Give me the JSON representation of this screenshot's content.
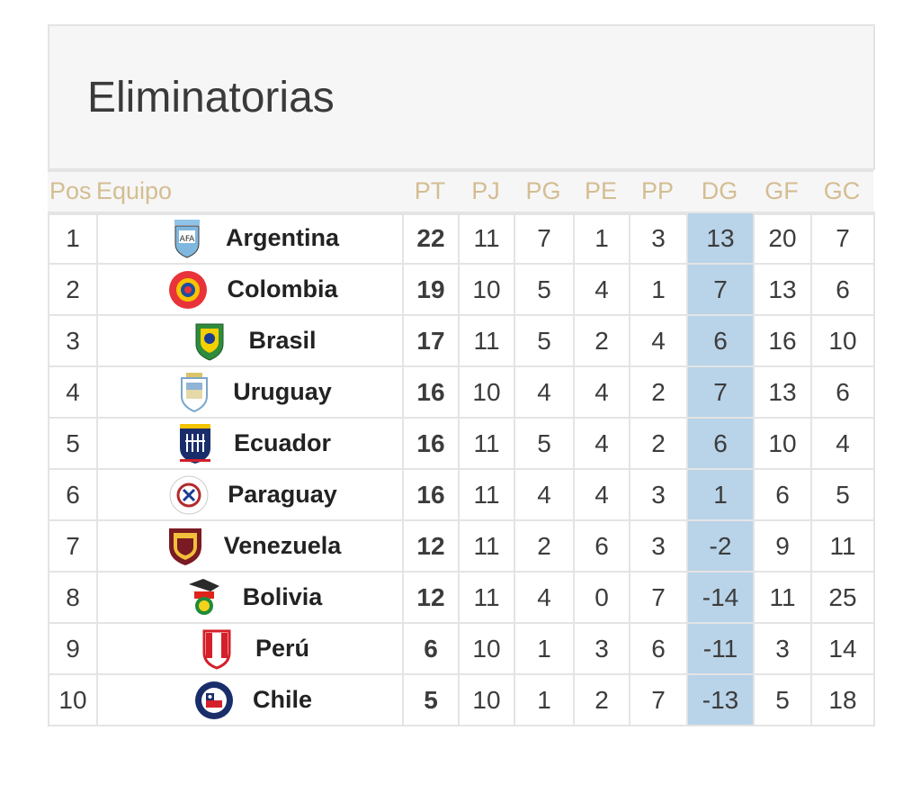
{
  "title": "Eliminatorias",
  "headers": {
    "pos": "Pos",
    "team": "Equipo",
    "pt": "PT",
    "pj": "PJ",
    "pg": "PG",
    "pe": "PE",
    "pp": "PP",
    "dg": "DG",
    "gf": "GF",
    "gc": "GC"
  },
  "colors": {
    "header_text": "#d4bd91",
    "dg_highlight": "#b9d3e8",
    "border": "#e4e4e4"
  },
  "rows": [
    {
      "pos": "1",
      "team": "Argentina",
      "crest": "argentina-crest-icon",
      "pt": "22",
      "pj": "11",
      "pg": "7",
      "pe": "1",
      "pp": "3",
      "dg": "13",
      "gf": "20",
      "gc": "7"
    },
    {
      "pos": "2",
      "team": "Colombia",
      "crest": "colombia-crest-icon",
      "pt": "19",
      "pj": "10",
      "pg": "5",
      "pe": "4",
      "pp": "1",
      "dg": "7",
      "gf": "13",
      "gc": "6"
    },
    {
      "pos": "3",
      "team": "Brasil",
      "crest": "brasil-crest-icon",
      "pt": "17",
      "pj": "11",
      "pg": "5",
      "pe": "2",
      "pp": "4",
      "dg": "6",
      "gf": "16",
      "gc": "10"
    },
    {
      "pos": "4",
      "team": "Uruguay",
      "crest": "uruguay-crest-icon",
      "pt": "16",
      "pj": "10",
      "pg": "4",
      "pe": "4",
      "pp": "2",
      "dg": "7",
      "gf": "13",
      "gc": "6"
    },
    {
      "pos": "5",
      "team": "Ecuador",
      "crest": "ecuador-crest-icon",
      "pt": "16",
      "pj": "11",
      "pg": "5",
      "pe": "4",
      "pp": "2",
      "dg": "6",
      "gf": "10",
      "gc": "4"
    },
    {
      "pos": "6",
      "team": "Paraguay",
      "crest": "paraguay-crest-icon",
      "pt": "16",
      "pj": "11",
      "pg": "4",
      "pe": "4",
      "pp": "3",
      "dg": "1",
      "gf": "6",
      "gc": "5"
    },
    {
      "pos": "7",
      "team": "Venezuela",
      "crest": "venezuela-crest-icon",
      "pt": "12",
      "pj": "11",
      "pg": "2",
      "pe": "6",
      "pp": "3",
      "dg": "-2",
      "gf": "9",
      "gc": "11"
    },
    {
      "pos": "8",
      "team": "Bolivia",
      "crest": "bolivia-crest-icon",
      "pt": "12",
      "pj": "11",
      "pg": "4",
      "pe": "0",
      "pp": "7",
      "dg": "-14",
      "gf": "11",
      "gc": "25"
    },
    {
      "pos": "9",
      "team": "Perú",
      "crest": "peru-crest-icon",
      "pt": "6",
      "pj": "10",
      "pg": "1",
      "pe": "3",
      "pp": "6",
      "dg": "-11",
      "gf": "3",
      "gc": "14"
    },
    {
      "pos": "10",
      "team": "Chile",
      "crest": "chile-crest-icon",
      "pt": "5",
      "pj": "10",
      "pg": "1",
      "pe": "2",
      "pp": "7",
      "dg": "-13",
      "gf": "5",
      "gc": "18"
    }
  ]
}
